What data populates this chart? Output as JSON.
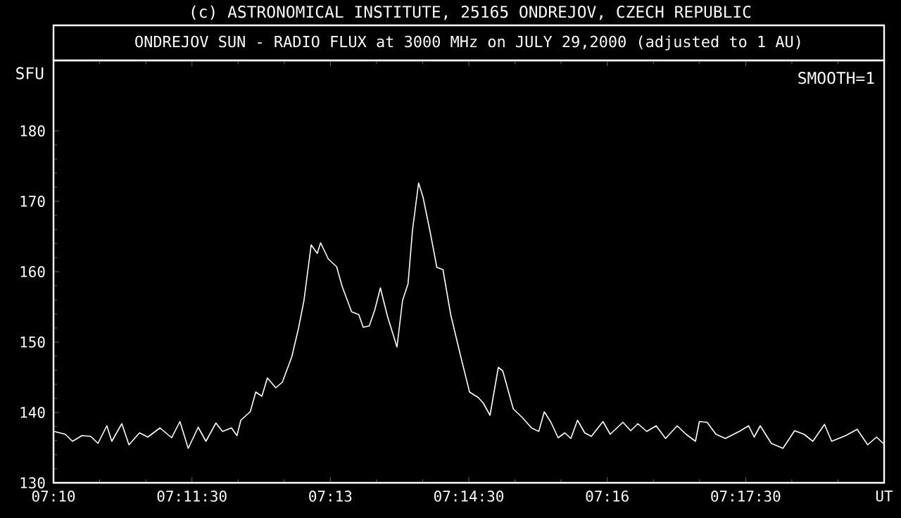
{
  "chart_data": {
    "type": "line",
    "title": "ONDREJOV SUN - RADIO FLUX at 3000 MHz on JULY 29,2000 (adjusted to 1 AU)",
    "ylabel": "SFU",
    "annotations": [
      "(c) ASTRONOMICAL INSTITUTE, 25165 ONDREJOV, CZECH REPUBLIC",
      "SMOOTH=1"
    ],
    "color": "#ffffff",
    "x": [
      7.1668,
      7.1688,
      7.1701,
      7.1718,
      7.1734,
      7.1747,
      7.1763,
      7.1772,
      7.179,
      7.1803,
      7.1822,
      7.1837,
      7.1859,
      7.188,
      7.1895,
      7.191,
      7.1928,
      7.1942,
      7.196,
      7.1972,
      7.1988,
      7.1998,
      7.2005,
      7.2022,
      7.2032,
      7.2043,
      7.2053,
      7.2068,
      7.208,
      7.2097,
      7.2109,
      7.2119,
      7.2132,
      7.2143,
      7.2149,
      7.2163,
      7.2178,
      7.2188,
      7.2205,
      7.2218,
      7.2226,
      7.2237,
      7.2247,
      7.2257,
      7.227,
      7.2287,
      7.2297,
      7.2307,
      7.2315,
      7.2326,
      7.2334,
      7.2347,
      7.2359,
      7.237,
      7.2384,
      7.2401,
      7.2418,
      7.2434,
      7.2443,
      7.2455,
      7.247,
      7.2478,
      7.2497,
      7.2513,
      7.253,
      7.2543,
      7.2553,
      7.2565,
      7.2578,
      7.259,
      7.2601,
      7.2613,
      7.2626,
      7.2638,
      7.2659,
      7.2672,
      7.2695,
      7.2709,
      7.2722,
      7.2738,
      7.2755,
      7.2772,
      7.2793,
      7.2809,
      7.2826,
      7.2833,
      7.2847,
      7.2863,
      7.288,
      7.2905,
      7.2922,
      7.2932,
      7.2943,
      7.2963,
      7.2984,
      7.3005,
      7.3022,
      7.3038,
      7.3059,
      7.3072,
      7.3097,
      7.3118,
      7.3137,
      7.3153,
      7.3165
    ],
    "values": [
      137.3,
      136.9,
      135.9,
      136.7,
      136.6,
      135.6,
      138.1,
      135.9,
      138.4,
      135.4,
      137.1,
      136.5,
      137.8,
      136.4,
      138.7,
      134.9,
      137.9,
      135.9,
      138.5,
      137.3,
      137.8,
      136.7,
      138.9,
      140.1,
      142.9,
      142.3,
      144.9,
      143.5,
      144.3,
      147.9,
      151.9,
      155.9,
      163.8,
      162.6,
      164.1,
      161.8,
      160.7,
      157.9,
      154.3,
      153.9,
      152.1,
      152.3,
      154.6,
      157.7,
      153.6,
      149.3,
      155.9,
      158.3,
      165.9,
      172.6,
      170.6,
      165.6,
      160.6,
      160.3,
      153.9,
      148.3,
      142.9,
      142.1,
      141.3,
      139.6,
      146.4,
      145.9,
      140.5,
      139.3,
      137.8,
      137.3,
      140.1,
      138.6,
      136.4,
      137.1,
      136.3,
      138.9,
      137.1,
      136.6,
      138.7,
      136.9,
      138.6,
      137.4,
      138.4,
      137.3,
      138.1,
      136.3,
      138.1,
      136.9,
      135.9,
      138.7,
      138.6,
      136.9,
      136.3,
      137.3,
      138.1,
      136.5,
      138.1,
      135.6,
      134.9,
      137.4,
      136.9,
      135.9,
      138.3,
      135.9,
      136.7,
      137.6,
      135.4,
      136.5,
      135.6
    ],
    "xlim": [
      7.16667,
      7.31667
    ],
    "ylim": [
      130,
      190
    ],
    "xticks": [
      {
        "value": 7.16667,
        "label": "07:10"
      },
      {
        "value": 7.19167,
        "label": "07:11:30"
      },
      {
        "value": 7.21667,
        "label": "07:13"
      },
      {
        "value": 7.24167,
        "label": "07:14:30"
      },
      {
        "value": 7.26667,
        "label": "07:16"
      },
      {
        "value": 7.29167,
        "label": "07:17:30"
      },
      {
        "value": 7.31667,
        "label": "UT"
      }
    ],
    "yticks": [
      130,
      140,
      150,
      160,
      170,
      180
    ]
  }
}
